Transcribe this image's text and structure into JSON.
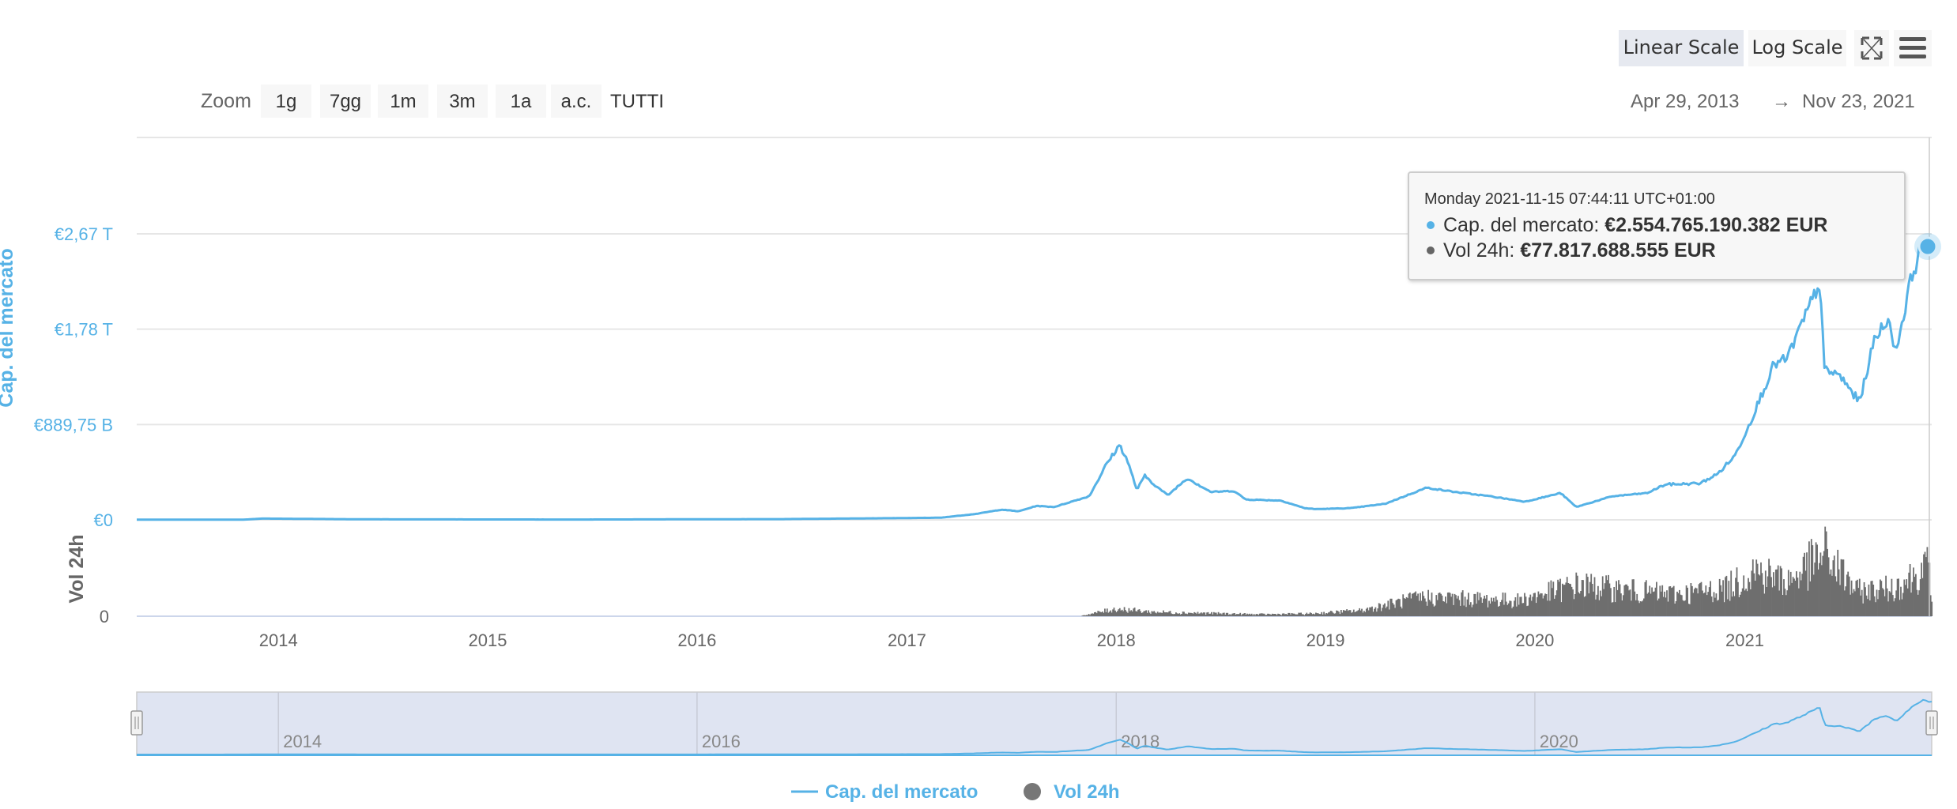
{
  "toolbar": {
    "linear_label": "Linear Scale",
    "log_label": "Log Scale",
    "active_scale": "linear"
  },
  "range_selector": {
    "zoom_label": "Zoom",
    "buttons": [
      "1g",
      "7gg",
      "1m",
      "3m",
      "1a",
      "a.c.",
      "TUTTI"
    ],
    "from": "Apr 29, 2013",
    "arrow": "→",
    "to": "Nov 23, 2021"
  },
  "tooltip": {
    "header": "Monday 2021-11-15 07:44:11 UTC+01:00",
    "rows": [
      {
        "label": "Cap. del mercato: ",
        "value": "€2.554.765.190.382 EUR",
        "color": "#56b2e6"
      },
      {
        "label": "Vol 24h: ",
        "value": "€77.817.688.555 EUR",
        "color": "#666666"
      }
    ]
  },
  "legend": {
    "items": [
      {
        "label": "Cap. del mercato",
        "color": "#56b2e6",
        "symbol": "line"
      },
      {
        "label": "Vol 24h",
        "color": "#777777",
        "symbol": "circle"
      }
    ]
  },
  "colors": {
    "cap": "#56b2e6",
    "vol": "#6e6e6e",
    "grid": "#e6e6e6",
    "axis_text": "#666666",
    "navigator_fill": "#dfe4f2"
  },
  "chart_data": {
    "type": "line",
    "x_range": [
      "2013-04-29",
      "2021-11-23"
    ],
    "x_tick_labels": [
      "2014",
      "2015",
      "2016",
      "2017",
      "2018",
      "2019",
      "2020",
      "2021"
    ],
    "navigator_tick_labels": [
      "2014",
      "2016",
      "2018",
      "2020"
    ],
    "y_axes": [
      {
        "title": "Cap. del mercato",
        "tick_labels": [
          "€0",
          "€889,75 B",
          "€1,78 T",
          "€2,67 T"
        ],
        "tick_values_eur": [
          0,
          889750000000.0,
          1780000000000.0,
          2670000000000.0
        ],
        "ylim": [
          0,
          3500000000000.0
        ]
      },
      {
        "title": "Vol 24h",
        "tick_labels": [
          "0"
        ],
        "ylim": [
          0,
          140000000000.0
        ]
      }
    ],
    "series": [
      {
        "name": "Cap. del mercato",
        "axis": 0,
        "unit": "EUR",
        "points": [
          [
            "2013-04-29",
            1200000000.0
          ],
          [
            "2013-11-01",
            2000000000.0
          ],
          [
            "2013-12-04",
            12000000000.0
          ],
          [
            "2014-06-01",
            5000000000.0
          ],
          [
            "2015-06-01",
            3000000000.0
          ],
          [
            "2016-06-01",
            7000000000.0
          ],
          [
            "2017-01-01",
            17000000000.0
          ],
          [
            "2017-03-01",
            20000000000.0
          ],
          [
            "2017-05-01",
            55000000000.0
          ],
          [
            "2017-06-15",
            95000000000.0
          ],
          [
            "2017-07-15",
            80000000000.0
          ],
          [
            "2017-08-15",
            130000000000.0
          ],
          [
            "2017-09-15",
            120000000000.0
          ],
          [
            "2017-10-15",
            170000000000.0
          ],
          [
            "2017-11-15",
            220000000000.0
          ],
          [
            "2017-12-15",
            520000000000.0
          ],
          [
            "2018-01-07",
            700000000000.0
          ],
          [
            "2018-01-20",
            560000000000.0
          ],
          [
            "2018-02-06",
            280000000000.0
          ],
          [
            "2018-02-20",
            410000000000.0
          ],
          [
            "2018-03-15",
            300000000000.0
          ],
          [
            "2018-04-01",
            230000000000.0
          ],
          [
            "2018-05-05",
            390000000000.0
          ],
          [
            "2018-06-15",
            260000000000.0
          ],
          [
            "2018-07-25",
            270000000000.0
          ],
          [
            "2018-08-15",
            190000000000.0
          ],
          [
            "2018-10-15",
            180000000000.0
          ],
          [
            "2018-11-25",
            110000000000.0
          ],
          [
            "2018-12-15",
            100000000000.0
          ],
          [
            "2019-02-15",
            110000000000.0
          ],
          [
            "2019-04-15",
            150000000000.0
          ],
          [
            "2019-06-26",
            300000000000.0
          ],
          [
            "2019-08-15",
            260000000000.0
          ],
          [
            "2019-10-15",
            220000000000.0
          ],
          [
            "2019-12-15",
            170000000000.0
          ],
          [
            "2020-02-15",
            250000000000.0
          ],
          [
            "2020-03-13",
            120000000000.0
          ],
          [
            "2020-05-15",
            220000000000.0
          ],
          [
            "2020-07-15",
            250000000000.0
          ],
          [
            "2020-08-15",
            330000000000.0
          ],
          [
            "2020-10-15",
            340000000000.0
          ],
          [
            "2020-11-15",
            430000000000.0
          ],
          [
            "2020-12-15",
            600000000000.0
          ],
          [
            "2021-01-08",
            880000000000.0
          ],
          [
            "2021-02-21",
            1450000000000.0
          ],
          [
            "2021-03-15",
            1500000000000.0
          ],
          [
            "2021-04-15",
            1880000000000.0
          ],
          [
            "2021-05-12",
            2220000000000.0
          ],
          [
            "2021-05-20",
            1400000000000.0
          ],
          [
            "2021-06-15",
            1350000000000.0
          ],
          [
            "2021-07-20",
            1100000000000.0
          ],
          [
            "2021-08-15",
            1680000000000.0
          ],
          [
            "2021-09-06",
            1880000000000.0
          ],
          [
            "2021-09-22",
            1580000000000.0
          ],
          [
            "2021-10-20",
            2300000000000.0
          ],
          [
            "2021-11-10",
            2600000000000.0
          ],
          [
            "2021-11-15",
            2554765000000.0
          ],
          [
            "2021-11-23",
            2480000000000.0
          ]
        ]
      },
      {
        "name": "Vol 24h",
        "axis": 1,
        "type": "column",
        "unit": "EUR",
        "points": [
          [
            "2017-11-01",
            1000000000.0
          ],
          [
            "2018-01-01",
            12000000000.0
          ],
          [
            "2018-03-01",
            7000000000.0
          ],
          [
            "2018-06-01",
            5000000000.0
          ],
          [
            "2018-09-01",
            3000000000.0
          ],
          [
            "2018-12-01",
            4000000000.0
          ],
          [
            "2019-03-01",
            9000000000.0
          ],
          [
            "2019-06-15",
            30000000000.0
          ],
          [
            "2019-09-01",
            28000000000.0
          ],
          [
            "2019-12-01",
            25000000000.0
          ],
          [
            "2020-03-15",
            50000000000.0
          ],
          [
            "2020-06-01",
            42000000000.0
          ],
          [
            "2020-09-01",
            35000000000.0
          ],
          [
            "2020-12-01",
            45000000000.0
          ],
          [
            "2021-01-15",
            75000000000.0
          ],
          [
            "2021-03-15",
            55000000000.0
          ],
          [
            "2021-05-20",
            100000000000.0
          ],
          [
            "2021-07-15",
            40000000000.0
          ],
          [
            "2021-09-15",
            45000000000.0
          ],
          [
            "2021-11-15",
            77818000000.0
          ],
          [
            "2021-11-23",
            40000000000.0
          ]
        ]
      }
    ],
    "highlight": {
      "date": "2021-11-15",
      "value": 2554765000000.0
    },
    "grid": true,
    "legend_position": "bottom-center"
  }
}
